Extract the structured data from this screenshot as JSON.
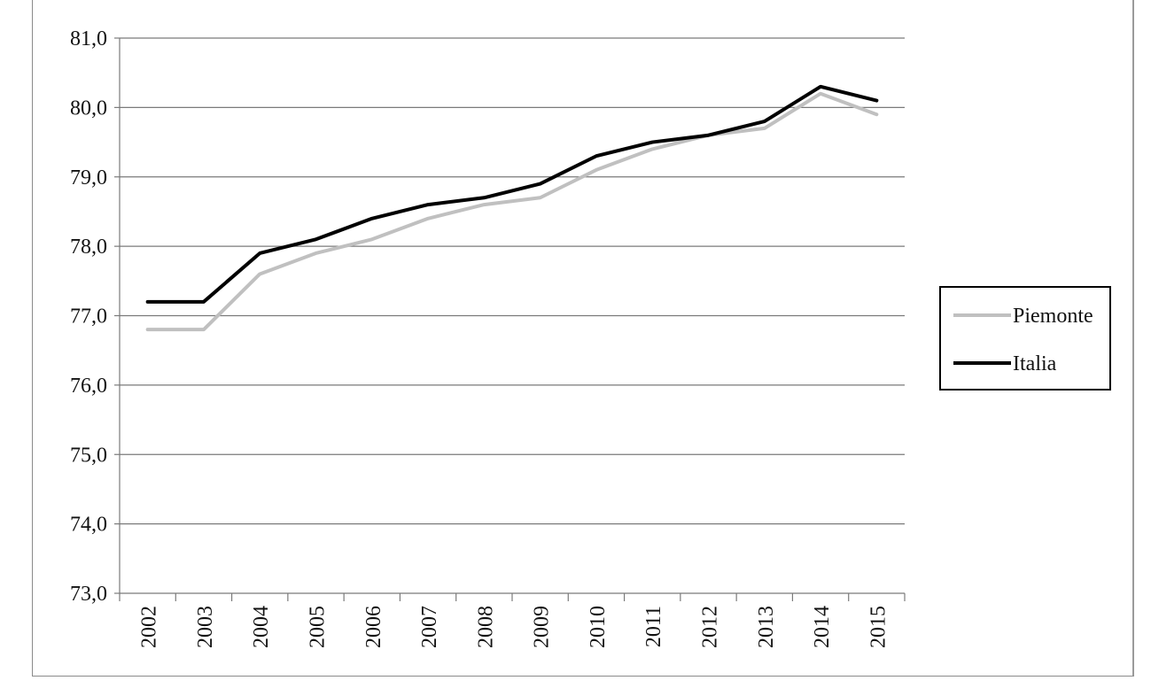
{
  "chart_data": {
    "type": "line",
    "title": "",
    "xlabel": "",
    "ylabel": "",
    "x": [
      "2002",
      "2003",
      "2004",
      "2005",
      "2006",
      "2007",
      "2008",
      "2009",
      "2010",
      "2011",
      "2012",
      "2013",
      "2014",
      "2015"
    ],
    "ylim": [
      73.0,
      81.0
    ],
    "yticks": [
      "73,0",
      "74,0",
      "75,0",
      "76,0",
      "77,0",
      "78,0",
      "79,0",
      "80,0",
      "81,0"
    ],
    "grid": "horizontal",
    "legend_position": "right",
    "series": [
      {
        "name": "Piemonte",
        "color": "#c0c0c0",
        "values": [
          76.8,
          76.8,
          77.6,
          77.9,
          78.1,
          78.4,
          78.6,
          78.7,
          79.1,
          79.4,
          79.6,
          79.7,
          80.2,
          79.9
        ]
      },
      {
        "name": "Italia",
        "color": "#000000",
        "values": [
          77.2,
          77.2,
          77.9,
          78.1,
          78.4,
          78.6,
          78.7,
          78.9,
          79.3,
          79.5,
          79.6,
          79.8,
          80.3,
          80.1
        ]
      }
    ]
  }
}
